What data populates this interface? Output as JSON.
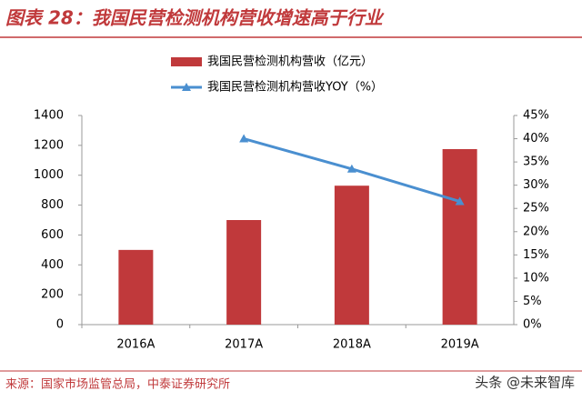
{
  "chart_data": {
    "type": "bar",
    "title": "图表 28：我国民营检测机构营收增速高于行业",
    "categories": [
      "2016A",
      "2017A",
      "2018A",
      "2019A"
    ],
    "series": [
      {
        "name": "我国民营检测机构营收（亿元）",
        "type": "bar",
        "color": "#c0393b",
        "values": [
          500,
          700,
          930,
          1175
        ]
      },
      {
        "name": "我国民营检测机构营收YOY（%）",
        "type": "line",
        "axis": "y2",
        "color": "#4a8fd0",
        "values": [
          null,
          40,
          33.5,
          26.5
        ]
      }
    ],
    "ylim": [
      0,
      1400
    ],
    "yticks": [
      0,
      200,
      400,
      600,
      800,
      1000,
      1200,
      1400
    ],
    "y2lim": [
      0,
      45
    ],
    "y2ticks": [
      {
        "value": 0,
        "label": "0%"
      },
      {
        "value": 5,
        "label": "5%"
      },
      {
        "value": 10,
        "label": "10%"
      },
      {
        "value": 15,
        "label": "15%"
      },
      {
        "value": 20,
        "label": "20%"
      },
      {
        "value": 25,
        "label": "25%"
      },
      {
        "value": 30,
        "label": "30%"
      },
      {
        "value": 35,
        "label": "35%"
      },
      {
        "value": 40,
        "label": "40%"
      },
      {
        "value": 45,
        "label": "45%"
      }
    ],
    "grid": false,
    "source": "来源：国家市场监管总局，中泰证券研究所",
    "watermark": "头条 @未来智库"
  }
}
